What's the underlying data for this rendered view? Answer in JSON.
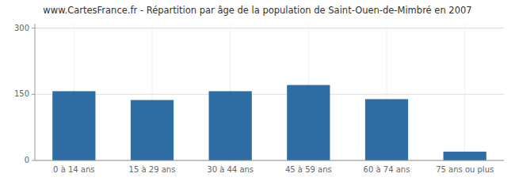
{
  "chart_data": {
    "type": "bar",
    "title": "www.CartesFrance.fr - Répartition par âge de la population de Saint-Ouen-de-Mimbré en 2007",
    "categories": [
      "0 à 14 ans",
      "15 à 29 ans",
      "30 à 44 ans",
      "45 à 59 ans",
      "60 à 74 ans",
      "75 ans ou plus"
    ],
    "values": [
      157,
      137,
      157,
      171,
      139,
      20
    ],
    "color": "#2e6da4",
    "ylim": [
      0,
      310
    ],
    "yticks": [
      0,
      150,
      300
    ],
    "grid": true
  }
}
